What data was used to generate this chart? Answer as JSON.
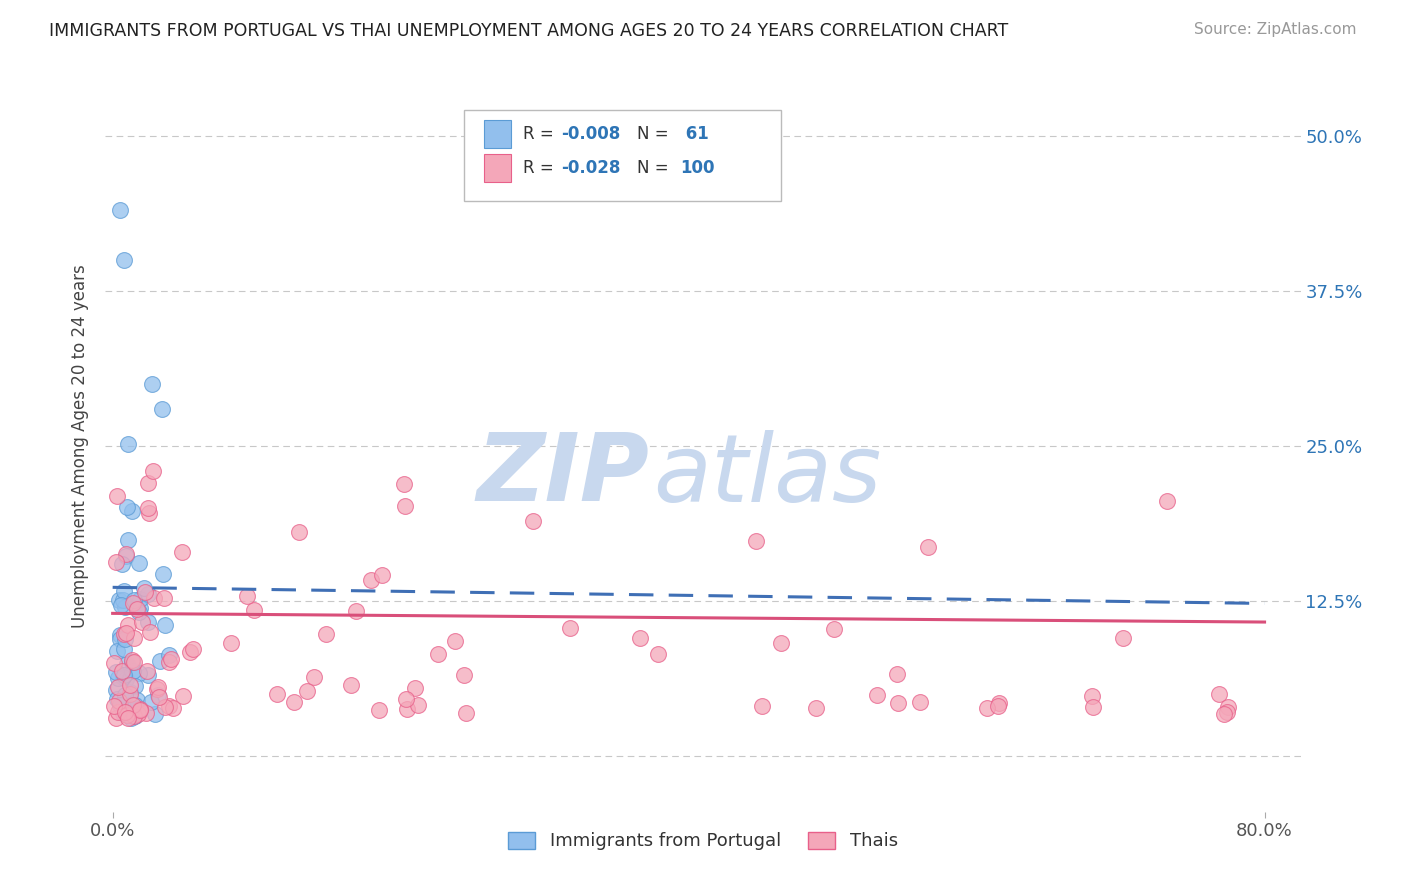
{
  "title": "IMMIGRANTS FROM PORTUGAL VS THAI UNEMPLOYMENT AMONG AGES 20 TO 24 YEARS CORRELATION CHART",
  "source": "Source: ZipAtlas.com",
  "ylabel": "Unemployment Among Ages 20 to 24 years",
  "y_ticks_right": [
    0.0,
    0.125,
    0.25,
    0.375,
    0.5
  ],
  "y_tick_labels_right": [
    "",
    "12.5%",
    "25.0%",
    "37.5%",
    "50.0%"
  ],
  "xlim": [
    -0.005,
    0.825
  ],
  "ylim": [
    -0.045,
    0.545
  ],
  "color_blue": "#92BFED",
  "color_blue_edge": "#5B9BD5",
  "color_blue_line": "#3F6FB5",
  "color_pink": "#F4A7B9",
  "color_pink_edge": "#E8608A",
  "color_pink_line": "#D94F7A",
  "color_r_value": "#2E75B6",
  "grid_color": "#C8C8C8",
  "background_color": "#FFFFFF",
  "watermark_zip_color": "#C8D8EE",
  "watermark_atlas_color": "#C8D8EE"
}
